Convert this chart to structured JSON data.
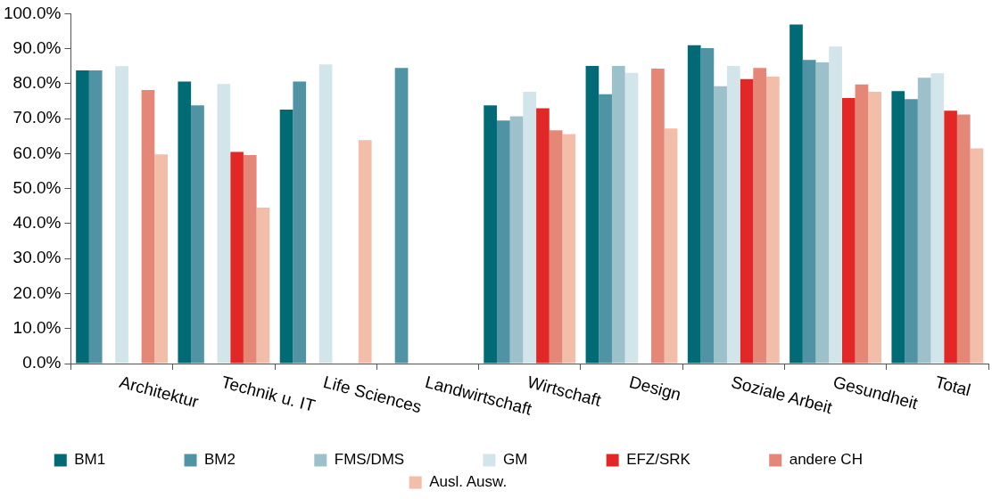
{
  "chart_data": {
    "type": "bar",
    "categories": [
      "Architektur",
      "Technik u. IT",
      "Life Sciences",
      "Landwirtschaft",
      "Wirtschaft",
      "Design",
      "Soziale Arbeit",
      "Gesundheit",
      "Total"
    ],
    "series": [
      {
        "name": "BM1",
        "color": "#006b75",
        "values": [
          83.8,
          80.6,
          72.6,
          null,
          73.8,
          85.1,
          91.0,
          96.9,
          77.9
        ]
      },
      {
        "name": "BM2",
        "color": "#4f93a4",
        "values": [
          83.8,
          73.8,
          80.6,
          84.5,
          69.5,
          77.0,
          90.2,
          86.8,
          75.6
        ]
      },
      {
        "name": "FMS/DMS",
        "color": "#9dc1ca",
        "values": [
          null,
          null,
          null,
          null,
          70.7,
          85.1,
          79.3,
          86.1,
          81.7
        ]
      },
      {
        "name": "GM",
        "color": "#d1e5ea",
        "values": [
          85.0,
          79.9,
          85.5,
          null,
          77.7,
          83.1,
          85.1,
          90.6,
          83.0
        ]
      },
      {
        "name": "EFZ/SRK",
        "color": "#e22826",
        "values": [
          null,
          60.5,
          null,
          null,
          73.0,
          null,
          81.3,
          75.9,
          72.3
        ]
      },
      {
        "name": "andere CH",
        "color": "#e48777",
        "values": [
          78.2,
          59.6,
          null,
          null,
          66.7,
          84.3,
          84.5,
          79.8,
          71.2
        ]
      },
      {
        "name": "Ausl. Ausw.",
        "color": "#f2bda9",
        "values": [
          59.8,
          44.6,
          63.9,
          null,
          65.6,
          67.2,
          82.0,
          77.7,
          61.5
        ]
      }
    ],
    "ylim": [
      0,
      100
    ],
    "yticks": [
      {
        "value": 0,
        "label": "0.0%"
      },
      {
        "value": 10,
        "label": "10.0%"
      },
      {
        "value": 20,
        "label": "20.0%"
      },
      {
        "value": 30,
        "label": "30.0%"
      },
      {
        "value": 40,
        "label": "40.0%"
      },
      {
        "value": 50,
        "label": "50.0%"
      },
      {
        "value": 60,
        "label": "60.0%"
      },
      {
        "value": 70,
        "label": "70.0%"
      },
      {
        "value": 80,
        "label": "80.0%"
      },
      {
        "value": 90,
        "label": "90.0%"
      },
      {
        "value": 100,
        "label": "100.0%"
      }
    ],
    "grid": false,
    "legend": "bottom"
  }
}
